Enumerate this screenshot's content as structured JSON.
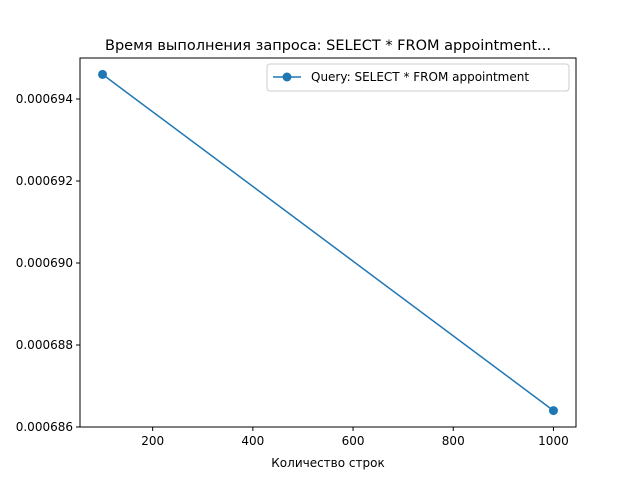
{
  "chart_data": {
    "type": "line",
    "title": "Время выполнения запроса: SELECT * FROM appointment...",
    "xlabel": "Количество строк",
    "ylabel": "",
    "xlim": [
      55,
      1045
    ],
    "ylim": [
      0.000686,
      0.000695
    ],
    "x_ticks": [
      200,
      400,
      600,
      800,
      1000
    ],
    "x_tick_labels": [
      "200",
      "400",
      "600",
      "800",
      "1000"
    ],
    "y_ticks": [
      0.000686,
      0.000688,
      0.00069,
      0.000692,
      0.000694
    ],
    "y_tick_labels": [
      "0.000686",
      "0.000688",
      "0.000690",
      "0.000692",
      "0.000694"
    ],
    "grid": false,
    "legend_position": "upper right",
    "series": [
      {
        "name": "Query: SELECT * FROM appointment",
        "color": "#1f77b4",
        "marker": "circle",
        "x": [
          100,
          1000
        ],
        "y": [
          0.0006946,
          0.0006864
        ]
      }
    ]
  }
}
